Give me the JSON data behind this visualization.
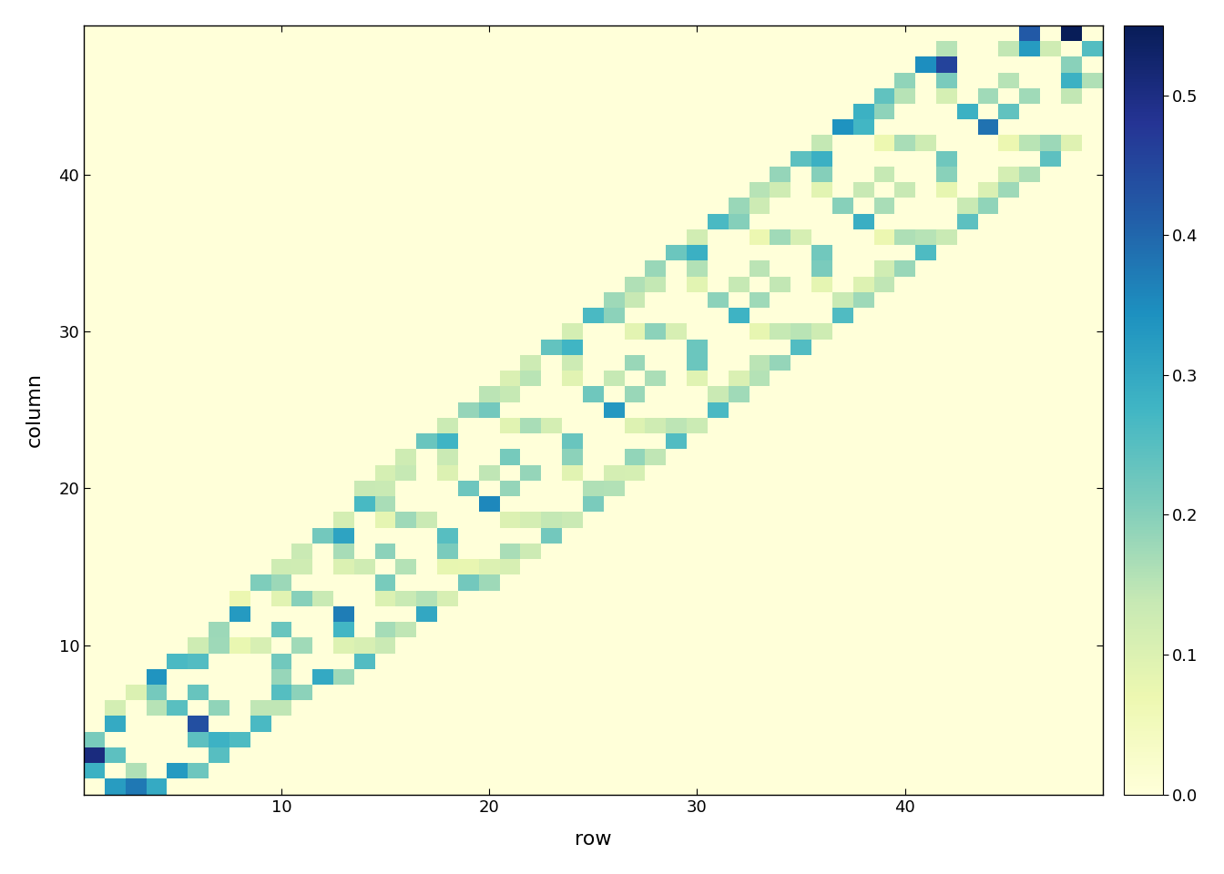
{
  "n": 49,
  "xlabel": "row",
  "ylabel": "column",
  "vmin": 0.0,
  "vmax": 0.55,
  "cmap": "YlGnBu",
  "colorbar_ticks": [
    0.0,
    0.1,
    0.2,
    0.3,
    0.4,
    0.5
  ],
  "xticks": [
    10,
    20,
    30,
    40
  ],
  "yticks": [
    10,
    20,
    30,
    40
  ],
  "background_color": "#f5f5e8",
  "axis_xlim": [
    0.5,
    49.5
  ],
  "axis_ylim": [
    0.5,
    49.5
  ]
}
